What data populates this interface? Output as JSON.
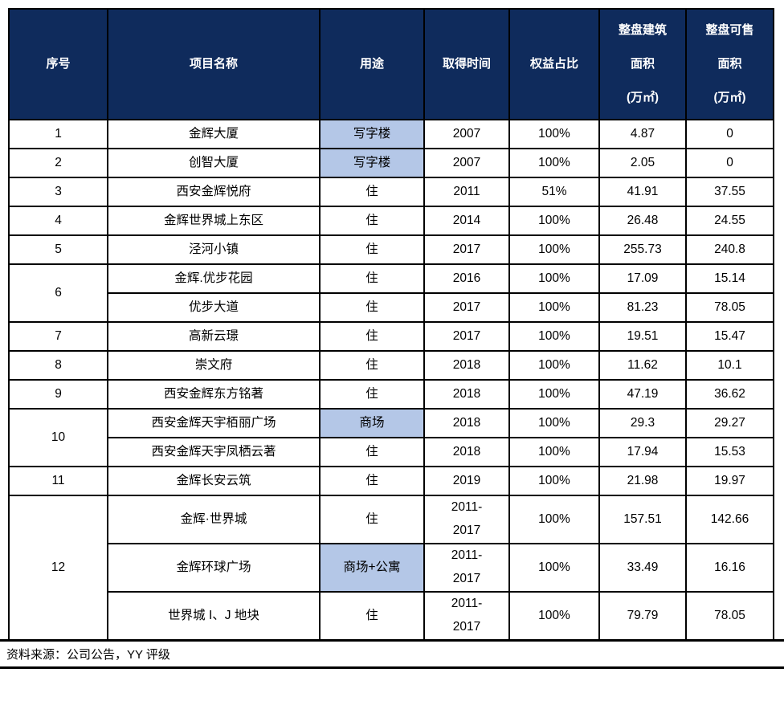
{
  "colors": {
    "header_bg": "#0f2b5c",
    "header_text": "#ffffff",
    "highlight_bg": "#b4c7e7",
    "border": "#000000",
    "body_text": "#000000"
  },
  "table": {
    "columns": [
      {
        "key": "no",
        "label_lines": [
          "序号"
        ]
      },
      {
        "key": "name",
        "label_lines": [
          "项目名称"
        ]
      },
      {
        "key": "use",
        "label_lines": [
          "用途"
        ]
      },
      {
        "key": "time",
        "label_lines": [
          "取得时间"
        ]
      },
      {
        "key": "equity",
        "label_lines": [
          "权益占比"
        ]
      },
      {
        "key": "gfa",
        "label_lines": [
          "整盘建筑",
          "面积",
          "(万㎡)"
        ]
      },
      {
        "key": "sellable",
        "label_lines": [
          "整盘可售",
          "面积",
          "(万㎡)"
        ]
      }
    ],
    "groups": [
      {
        "no": "1",
        "projects": [
          {
            "name": "金辉大厦",
            "use": "写字楼",
            "use_highlighted": true,
            "time": "2007",
            "equity": "100%",
            "gfa": "4.87",
            "sellable": "0"
          }
        ]
      },
      {
        "no": "2",
        "projects": [
          {
            "name": "创智大厦",
            "use": "写字楼",
            "use_highlighted": true,
            "time": "2007",
            "equity": "100%",
            "gfa": "2.05",
            "sellable": "0"
          }
        ]
      },
      {
        "no": "3",
        "projects": [
          {
            "name": "西安金辉悦府",
            "use": "住",
            "use_highlighted": false,
            "time": "2011",
            "equity": "51%",
            "gfa": "41.91",
            "sellable": "37.55"
          }
        ]
      },
      {
        "no": "4",
        "projects": [
          {
            "name": "金辉世界城上东区",
            "use": "住",
            "use_highlighted": false,
            "time": "2014",
            "equity": "100%",
            "gfa": "26.48",
            "sellable": "24.55"
          }
        ]
      },
      {
        "no": "5",
        "projects": [
          {
            "name": "泾河小镇",
            "use": "住",
            "use_highlighted": false,
            "time": "2017",
            "equity": "100%",
            "gfa": "255.73",
            "sellable": "240.8"
          }
        ]
      },
      {
        "no": "6",
        "projects": [
          {
            "name": "金辉.优步花园",
            "use": "住",
            "use_highlighted": false,
            "time": "2016",
            "equity": "100%",
            "gfa": "17.09",
            "sellable": "15.14"
          },
          {
            "name": "优步大道",
            "use": "住",
            "use_highlighted": false,
            "time": "2017",
            "equity": "100%",
            "gfa": "81.23",
            "sellable": "78.05"
          }
        ]
      },
      {
        "no": "7",
        "projects": [
          {
            "name": "高新云璟",
            "use": "住",
            "use_highlighted": false,
            "time": "2017",
            "equity": "100%",
            "gfa": "19.51",
            "sellable": "15.47"
          }
        ]
      },
      {
        "no": "8",
        "projects": [
          {
            "name": "崇文府",
            "use": "住",
            "use_highlighted": false,
            "time": "2018",
            "equity": "100%",
            "gfa": "11.62",
            "sellable": "10.1"
          }
        ]
      },
      {
        "no": "9",
        "projects": [
          {
            "name": "西安金辉东方铭著",
            "use": "住",
            "use_highlighted": false,
            "time": "2018",
            "equity": "100%",
            "gfa": "47.19",
            "sellable": "36.62"
          }
        ]
      },
      {
        "no": "10",
        "projects": [
          {
            "name": "西安金辉天宇栢丽广场",
            "use": "商场",
            "use_highlighted": true,
            "time": "2018",
            "equity": "100%",
            "gfa": "29.3",
            "sellable": "29.27"
          },
          {
            "name": "西安金辉天宇凤栖云著",
            "use": "住",
            "use_highlighted": false,
            "time": "2018",
            "equity": "100%",
            "gfa": "17.94",
            "sellable": "15.53"
          }
        ]
      },
      {
        "no": "11",
        "projects": [
          {
            "name": "金辉长安云筑",
            "use": "住",
            "use_highlighted": false,
            "time": "2019",
            "equity": "100%",
            "gfa": "21.98",
            "sellable": "19.97"
          }
        ]
      },
      {
        "no": "12",
        "projects": [
          {
            "name": "金辉·世界城",
            "use": "住",
            "use_highlighted": false,
            "time": "2011-2017",
            "equity": "100%",
            "gfa": "157.51",
            "sellable": "142.66"
          },
          {
            "name": "金辉环球广场",
            "use": "商场+公寓",
            "use_highlighted": true,
            "time": "2011-2017",
            "equity": "100%",
            "gfa": "33.49",
            "sellable": "16.16"
          },
          {
            "name": "世界城 I、J 地块",
            "use": "住",
            "use_highlighted": false,
            "time": "2011-2017",
            "equity": "100%",
            "gfa": "79.79",
            "sellable": "78.05"
          }
        ]
      }
    ]
  },
  "footer": {
    "source_note": "资料来源：公司公告，YY 评级"
  }
}
